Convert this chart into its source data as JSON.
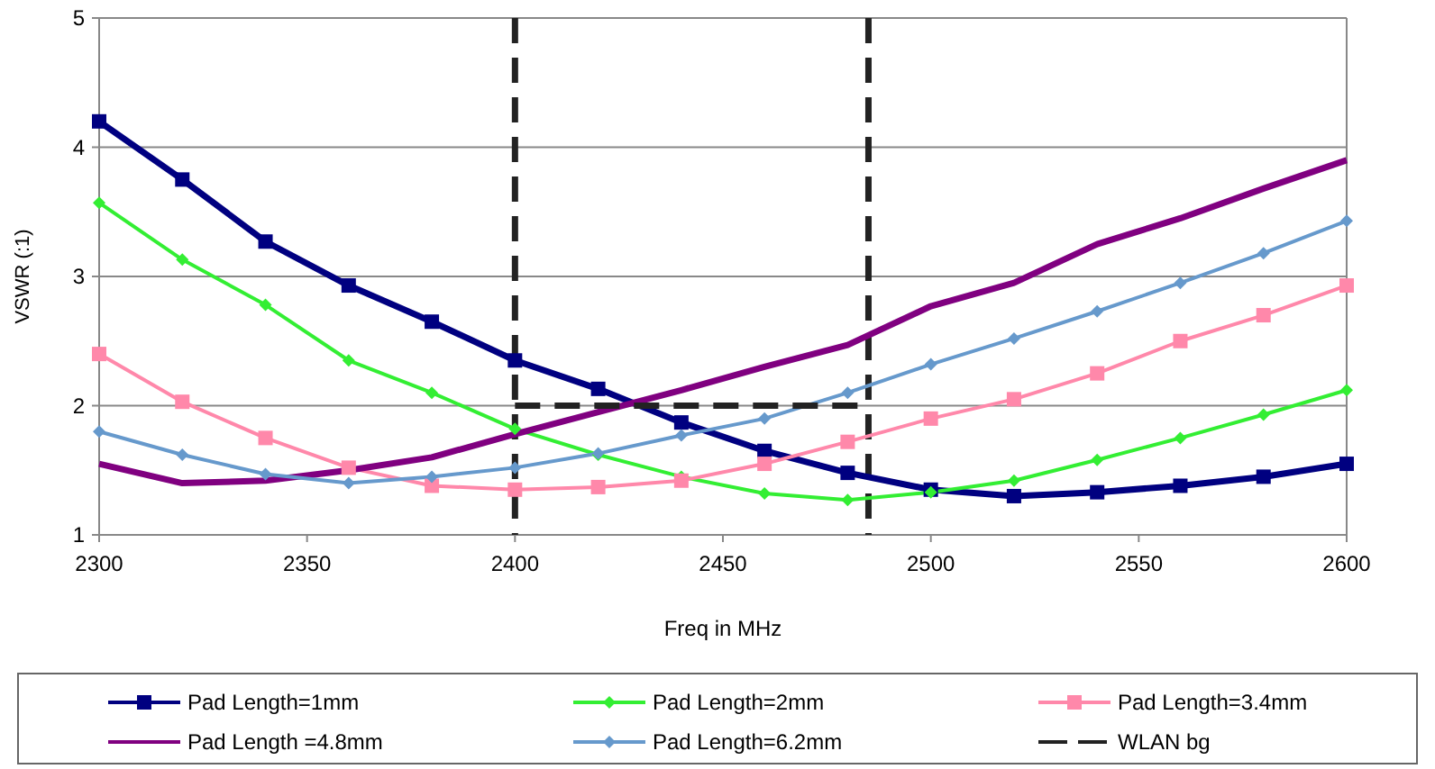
{
  "chart_data": {
    "type": "line",
    "xlabel": "Freq in MHz",
    "ylabel": "VSWR (:1)",
    "x": [
      2300,
      2320,
      2340,
      2360,
      2380,
      2400,
      2420,
      2440,
      2460,
      2480,
      2500,
      2520,
      2540,
      2560,
      2580,
      2600
    ],
    "xlim": [
      2300,
      2600
    ],
    "xticks": [
      2300,
      2350,
      2400,
      2450,
      2500,
      2550,
      2600
    ],
    "ylim": [
      1,
      5
    ],
    "yticks": [
      1,
      2,
      3,
      4,
      5
    ],
    "grid": "y",
    "legend": "bottom",
    "line_style": "solid",
    "series": [
      {
        "name": "Pad Length=1mm",
        "color": "#000080",
        "marker": "square",
        "values": [
          4.2,
          3.75,
          3.27,
          2.93,
          2.65,
          2.35,
          2.13,
          1.87,
          1.65,
          1.48,
          1.35,
          1.3,
          1.33,
          1.38,
          1.45,
          1.55
        ]
      },
      {
        "name": "Pad Length=2mm",
        "color": "#33ee33",
        "marker": "diamond",
        "values": [
          3.57,
          3.13,
          2.78,
          2.35,
          2.1,
          1.82,
          1.62,
          1.45,
          1.32,
          1.27,
          1.33,
          1.42,
          1.58,
          1.75,
          1.93,
          2.12
        ]
      },
      {
        "name": "Pad Length=3.4mm",
        "color": "#ff88aa",
        "marker": "square",
        "values": [
          2.4,
          2.03,
          1.75,
          1.52,
          1.38,
          1.35,
          1.37,
          1.42,
          1.55,
          1.72,
          1.9,
          2.05,
          2.25,
          2.5,
          2.7,
          2.93
        ]
      },
      {
        "name": "Pad Length =4.8mm",
        "color": "#800080",
        "marker": "none",
        "values": [
          1.55,
          1.4,
          1.42,
          1.5,
          1.6,
          1.78,
          1.95,
          2.12,
          2.3,
          2.47,
          2.77,
          2.95,
          3.25,
          3.45,
          3.68,
          3.9
        ]
      },
      {
        "name": "Pad Length=6.2mm",
        "color": "#6699cc",
        "marker": "diamond",
        "values": [
          1.8,
          1.62,
          1.47,
          1.4,
          1.45,
          1.52,
          1.63,
          1.77,
          1.9,
          2.1,
          2.32,
          2.52,
          2.73,
          2.95,
          3.18,
          3.43
        ]
      },
      {
        "name": "WLAN bg",
        "color": "#222222",
        "marker": "none",
        "line_style": "dashed",
        "x": [
          2400,
          2485
        ],
        "values": [
          2,
          2
        ]
      }
    ],
    "ref_lines": [
      {
        "axis": "x",
        "value": 2400,
        "color": "#222222",
        "line_style": "dashed"
      },
      {
        "axis": "x",
        "value": 2485,
        "color": "#222222",
        "line_style": "dashed"
      }
    ]
  }
}
